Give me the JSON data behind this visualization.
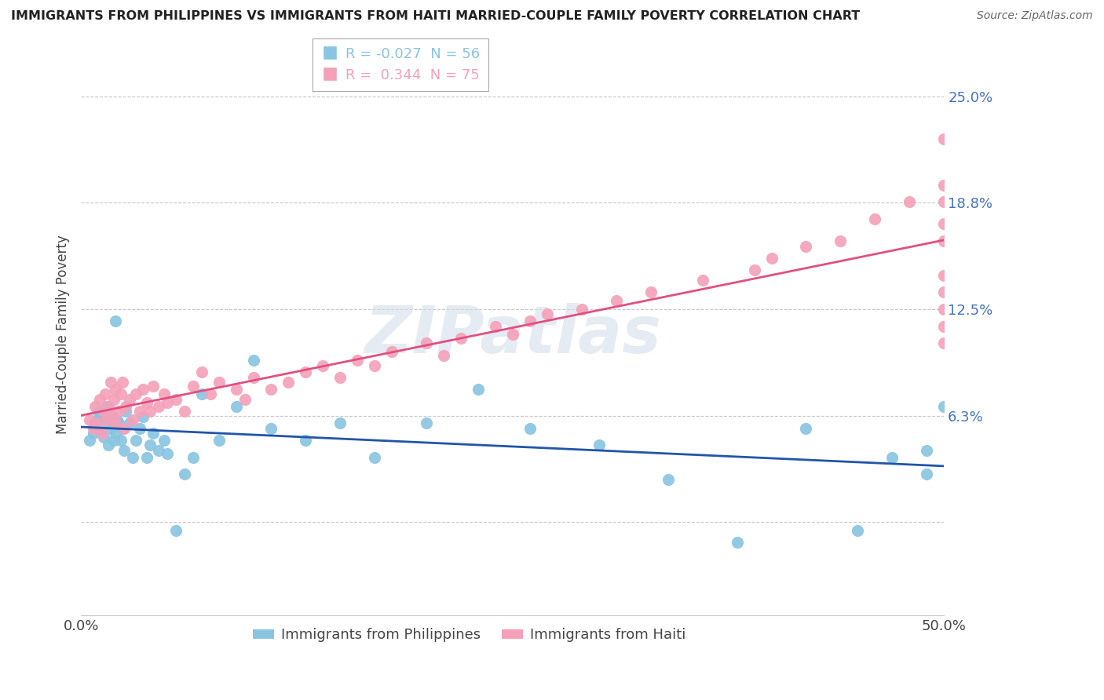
{
  "title": "IMMIGRANTS FROM PHILIPPINES VS IMMIGRANTS FROM HAITI MARRIED-COUPLE FAMILY POVERTY CORRELATION CHART",
  "source": "Source: ZipAtlas.com",
  "ylabel": "Married-Couple Family Poverty",
  "ytick_vals": [
    0.0,
    0.0625,
    0.125,
    0.1875,
    0.25
  ],
  "ytick_labels": [
    "",
    "6.3%",
    "12.5%",
    "18.8%",
    "25.0%"
  ],
  "xlim": [
    0.0,
    0.5
  ],
  "ylim": [
    -0.055,
    0.275
  ],
  "legend_label1": "Immigrants from Philippines",
  "legend_label2": "Immigrants from Haiti",
  "color_philippines": "#89c4e1",
  "color_haiti": "#f4a0b8",
  "line_color_philippines": "#2255aa",
  "line_color_haiti": "#e05080",
  "legend_R1": "R = -0.027",
  "legend_N1": "N = 56",
  "legend_R2": "R =  0.344",
  "legend_N2": "N = 75",
  "philippines_x": [
    0.005,
    0.007,
    0.008,
    0.01,
    0.01,
    0.012,
    0.013,
    0.014,
    0.015,
    0.015,
    0.016,
    0.017,
    0.018,
    0.019,
    0.02,
    0.02,
    0.021,
    0.022,
    0.023,
    0.024,
    0.025,
    0.026,
    0.028,
    0.03,
    0.032,
    0.034,
    0.036,
    0.038,
    0.04,
    0.042,
    0.045,
    0.048,
    0.05,
    0.055,
    0.06,
    0.065,
    0.07,
    0.08,
    0.09,
    0.1,
    0.11,
    0.13,
    0.15,
    0.17,
    0.2,
    0.23,
    0.26,
    0.3,
    0.34,
    0.38,
    0.42,
    0.45,
    0.47,
    0.49,
    0.49,
    0.5
  ],
  "philippines_y": [
    0.048,
    0.052,
    0.058,
    0.06,
    0.065,
    0.055,
    0.05,
    0.062,
    0.058,
    0.068,
    0.045,
    0.055,
    0.062,
    0.048,
    0.118,
    0.052,
    0.06,
    0.058,
    0.048,
    0.055,
    0.042,
    0.065,
    0.058,
    0.038,
    0.048,
    0.055,
    0.062,
    0.038,
    0.045,
    0.052,
    0.042,
    0.048,
    0.04,
    -0.005,
    0.028,
    0.038,
    0.075,
    0.048,
    0.068,
    0.095,
    0.055,
    0.048,
    0.058,
    0.038,
    0.058,
    0.078,
    0.055,
    0.045,
    0.025,
    -0.012,
    0.055,
    -0.005,
    0.038,
    0.042,
    0.028,
    0.068
  ],
  "haiti_x": [
    0.005,
    0.007,
    0.008,
    0.01,
    0.011,
    0.012,
    0.013,
    0.014,
    0.015,
    0.016,
    0.017,
    0.018,
    0.019,
    0.02,
    0.02,
    0.022,
    0.023,
    0.024,
    0.025,
    0.026,
    0.028,
    0.03,
    0.032,
    0.034,
    0.036,
    0.038,
    0.04,
    0.042,
    0.045,
    0.048,
    0.05,
    0.055,
    0.06,
    0.065,
    0.07,
    0.075,
    0.08,
    0.09,
    0.095,
    0.1,
    0.11,
    0.12,
    0.13,
    0.14,
    0.15,
    0.16,
    0.17,
    0.18,
    0.2,
    0.21,
    0.22,
    0.24,
    0.25,
    0.26,
    0.27,
    0.29,
    0.31,
    0.33,
    0.36,
    0.39,
    0.4,
    0.42,
    0.44,
    0.46,
    0.48,
    0.5,
    0.5,
    0.5,
    0.5,
    0.5,
    0.5,
    0.5,
    0.5,
    0.5,
    0.5
  ],
  "haiti_y": [
    0.06,
    0.055,
    0.068,
    0.058,
    0.072,
    0.052,
    0.065,
    0.075,
    0.06,
    0.068,
    0.082,
    0.062,
    0.072,
    0.058,
    0.078,
    0.065,
    0.075,
    0.082,
    0.055,
    0.068,
    0.072,
    0.06,
    0.075,
    0.065,
    0.078,
    0.07,
    0.065,
    0.08,
    0.068,
    0.075,
    0.07,
    0.072,
    0.065,
    0.08,
    0.088,
    0.075,
    0.082,
    0.078,
    0.072,
    0.085,
    0.078,
    0.082,
    0.088,
    0.092,
    0.085,
    0.095,
    0.092,
    0.1,
    0.105,
    0.098,
    0.108,
    0.115,
    0.11,
    0.118,
    0.122,
    0.125,
    0.13,
    0.135,
    0.142,
    0.148,
    0.155,
    0.162,
    0.165,
    0.178,
    0.188,
    0.225,
    0.165,
    0.145,
    0.198,
    0.135,
    0.115,
    0.105,
    0.175,
    0.125,
    0.188
  ]
}
